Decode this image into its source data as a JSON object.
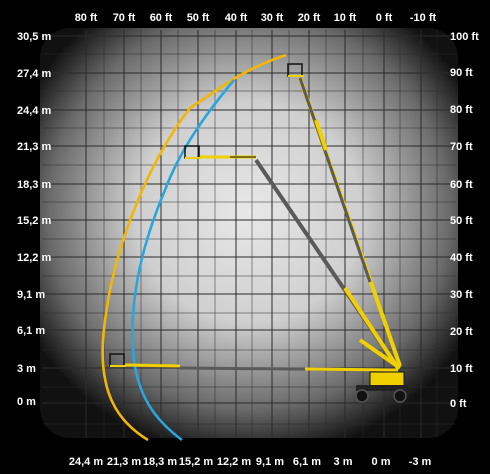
{
  "top_axis": [
    "80 ft",
    "70 ft",
    "60 ft",
    "50 ft",
    "40 ft",
    "30 ft",
    "20 ft",
    "10 ft",
    "0 ft",
    "-10 ft"
  ],
  "bottom_axis": [
    "24,4 m",
    "21,3 m",
    "18,3 m",
    "15,2 m",
    "12,2 m",
    "9,1 m",
    "6,1 m",
    "3 m",
    "0 m",
    "-3 m"
  ],
  "left_axis": [
    "30,5 m",
    "27,4 m",
    "24,4 m",
    "21,3 m",
    "18,3 m",
    "15,2 m",
    "12,2 m",
    "9,1 m",
    "6,1 m",
    "3 m",
    "0 m"
  ],
  "right_axis": [
    "100 ft",
    "90 ft",
    "80 ft",
    "70 ft",
    "60 ft",
    "50 ft",
    "40 ft",
    "30 ft",
    "20 ft",
    "10 ft",
    "0 ft"
  ],
  "colors": {
    "background": "#000000",
    "grid": "#2a2a2a",
    "envelope_outer": "#f2b705",
    "envelope_inner": "#2aa6dc",
    "boom_yellow": "#f0d000",
    "boom_gray": "#5a5a5a",
    "text": "#ffffff"
  }
}
